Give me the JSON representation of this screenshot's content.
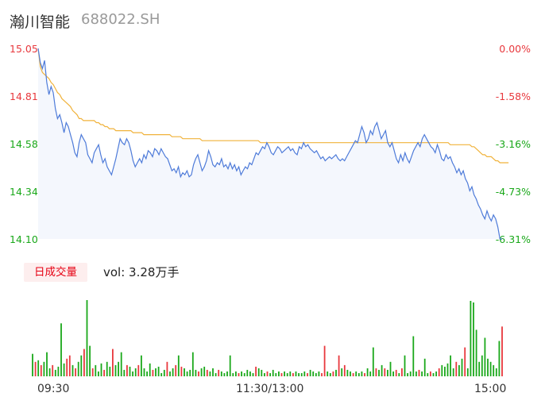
{
  "header": {
    "name": "瀚川智能",
    "code": "688022.SH"
  },
  "colors": {
    "price": "#4e7bd9",
    "avg": "#f0b23a",
    "up": "#e8383d",
    "down": "#1aa81a",
    "area": "#f4f7fd"
  },
  "controls": {
    "period_label": "日成交量",
    "volume_text": "vol: 3.28万手"
  },
  "chart_data": {
    "type": "line",
    "title": "",
    "xlabel": "",
    "ylabel": "",
    "ylim": [
      14.1,
      15.05
    ],
    "y_ticks_left": [
      "15.05",
      "14.81",
      "14.58",
      "14.34",
      "14.10"
    ],
    "y_ticks_right": [
      "0.00%",
      "-1.58%",
      "-3.16%",
      "-4.73%",
      "-6.31%"
    ],
    "x_ticks": [
      "09:30",
      "11:30/13:00",
      "15:00"
    ],
    "grid": false,
    "series": [
      {
        "values": [
          15.05,
          14.98,
          14.95,
          14.99,
          14.88,
          14.82,
          14.86,
          14.83,
          14.75,
          14.7,
          14.72,
          14.68,
          14.63,
          14.68,
          14.66,
          14.62,
          14.58,
          14.53,
          14.51,
          14.58,
          14.62,
          14.6,
          14.58,
          14.52,
          14.5,
          14.48,
          14.53,
          14.55,
          14.57,
          14.52,
          14.48,
          14.5,
          14.46,
          14.44,
          14.42,
          14.46,
          14.5,
          14.55,
          14.6,
          14.58,
          14.57,
          14.6,
          14.58,
          14.54,
          14.49,
          14.46,
          14.48,
          14.5,
          14.48,
          14.52,
          14.5,
          14.54,
          14.53,
          14.51,
          14.55,
          14.54,
          14.52,
          14.55,
          14.53,
          14.51,
          14.5,
          14.47,
          14.44,
          14.45,
          14.43,
          14.46,
          14.41,
          14.43,
          14.42,
          14.44,
          14.41,
          14.42,
          14.47,
          14.5,
          14.52,
          14.48,
          14.44,
          14.46,
          14.49,
          14.54,
          14.51,
          14.47,
          14.46,
          14.48,
          14.47,
          14.5,
          14.46,
          14.47,
          14.45,
          14.48,
          14.45,
          14.47,
          14.44,
          14.46,
          14.42,
          14.44,
          14.46,
          14.45,
          14.48,
          14.47,
          14.5,
          14.53,
          14.52,
          14.54,
          14.56,
          14.55,
          14.58,
          14.56,
          14.53,
          14.52,
          14.54,
          14.56,
          14.55,
          14.53,
          14.54,
          14.55,
          14.56,
          14.54,
          14.55,
          14.53,
          14.52,
          14.56,
          14.55,
          14.58,
          14.56,
          14.57,
          14.55,
          14.54,
          14.53,
          14.54,
          14.52,
          14.5,
          14.51,
          14.49,
          14.5,
          14.51,
          14.5,
          14.51,
          14.52,
          14.5,
          14.49,
          14.5,
          14.49,
          14.51,
          14.53,
          14.55,
          14.57,
          14.59,
          14.58,
          14.62,
          14.66,
          14.63,
          14.58,
          14.6,
          14.64,
          14.62,
          14.66,
          14.68,
          14.64,
          14.6,
          14.62,
          14.64,
          14.58,
          14.56,
          14.58,
          14.54,
          14.5,
          14.48,
          14.52,
          14.49,
          14.53,
          14.5,
          14.48,
          14.51,
          14.54,
          14.56,
          14.58,
          14.56,
          14.6,
          14.62,
          14.6,
          14.58,
          14.56,
          14.55,
          14.53,
          14.57,
          14.54,
          14.5,
          14.49,
          14.52,
          14.5,
          14.51,
          14.48,
          14.46,
          14.43,
          14.45,
          14.42,
          14.44,
          14.4,
          14.38,
          14.34,
          14.36,
          14.32,
          14.3,
          14.27,
          14.25,
          14.22,
          14.2,
          14.24,
          14.21,
          14.19,
          14.22,
          14.2,
          14.16,
          14.1,
          14.1
        ]
      },
      {
        "values": [
          15.05,
          14.96,
          14.93,
          14.92,
          14.91,
          14.9,
          14.88,
          14.87,
          14.85,
          14.83,
          14.82,
          14.8,
          14.79,
          14.78,
          14.77,
          14.76,
          14.74,
          14.73,
          14.72,
          14.7,
          14.7,
          14.69,
          14.69,
          14.69,
          14.69,
          14.69,
          14.69,
          14.68,
          14.68,
          14.67,
          14.67,
          14.66,
          14.66,
          14.65,
          14.65,
          14.65,
          14.64,
          14.64,
          14.64,
          14.64,
          14.64,
          14.64,
          14.64,
          14.64,
          14.63,
          14.63,
          14.63,
          14.63,
          14.63,
          14.62,
          14.62,
          14.62,
          14.62,
          14.62,
          14.62,
          14.62,
          14.62,
          14.62,
          14.62,
          14.62,
          14.62,
          14.62,
          14.61,
          14.61,
          14.61,
          14.61,
          14.61,
          14.6,
          14.6,
          14.6,
          14.6,
          14.6,
          14.6,
          14.6,
          14.6,
          14.6,
          14.59,
          14.59,
          14.59,
          14.59,
          14.59,
          14.59,
          14.59,
          14.59,
          14.59,
          14.59,
          14.59,
          14.59,
          14.59,
          14.59,
          14.59,
          14.59,
          14.59,
          14.59,
          14.59,
          14.59,
          14.59,
          14.59,
          14.59,
          14.59,
          14.59,
          14.59,
          14.59,
          14.58,
          14.58,
          14.58,
          14.58,
          14.58,
          14.58,
          14.58,
          14.58,
          14.58,
          14.58,
          14.58,
          14.58,
          14.58,
          14.58,
          14.58,
          14.58,
          14.58,
          14.58,
          14.58,
          14.58,
          14.58,
          14.58,
          14.58,
          14.58,
          14.58,
          14.58,
          14.58,
          14.58,
          14.58,
          14.58,
          14.58,
          14.58,
          14.58,
          14.58,
          14.58,
          14.58,
          14.58,
          14.58,
          14.58,
          14.58,
          14.58,
          14.58,
          14.58,
          14.58,
          14.58,
          14.58,
          14.58,
          14.58,
          14.58,
          14.58,
          14.58,
          14.58,
          14.58,
          14.58,
          14.58,
          14.58,
          14.58,
          14.58,
          14.58,
          14.58,
          14.58,
          14.58,
          14.58,
          14.58,
          14.58,
          14.58,
          14.58,
          14.58,
          14.58,
          14.58,
          14.58,
          14.58,
          14.58,
          14.58,
          14.58,
          14.58,
          14.58,
          14.58,
          14.58,
          14.58,
          14.58,
          14.58,
          14.58,
          14.58,
          14.58,
          14.58,
          14.58,
          14.58,
          14.57,
          14.57,
          14.57,
          14.57,
          14.57,
          14.57,
          14.57,
          14.57,
          14.57,
          14.57,
          14.56,
          14.56,
          14.55,
          14.54,
          14.53,
          14.52,
          14.52,
          14.51,
          14.51,
          14.51,
          14.5,
          14.49,
          14.49,
          14.48,
          14.48,
          14.48,
          14.48,
          14.48
        ]
      }
    ],
    "volume": [
      {
        "v": 28,
        "c": "down"
      },
      {
        "v": 18,
        "c": "up"
      },
      {
        "v": 20,
        "c": "down"
      },
      {
        "v": 14,
        "c": "up"
      },
      {
        "v": 18,
        "c": "down"
      },
      {
        "v": 30,
        "c": "down"
      },
      {
        "v": 10,
        "c": "down"
      },
      {
        "v": 14,
        "c": "up"
      },
      {
        "v": 8,
        "c": "down"
      },
      {
        "v": 12,
        "c": "down"
      },
      {
        "v": 66,
        "c": "down"
      },
      {
        "v": 16,
        "c": "down"
      },
      {
        "v": 22,
        "c": "up"
      },
      {
        "v": 26,
        "c": "up"
      },
      {
        "v": 14,
        "c": "down"
      },
      {
        "v": 10,
        "c": "up"
      },
      {
        "v": 18,
        "c": "down"
      },
      {
        "v": 26,
        "c": "down"
      },
      {
        "v": 34,
        "c": "up"
      },
      {
        "v": 95,
        "c": "down"
      },
      {
        "v": 38,
        "c": "down"
      },
      {
        "v": 10,
        "c": "up"
      },
      {
        "v": 14,
        "c": "down"
      },
      {
        "v": 6,
        "c": "down"
      },
      {
        "v": 16,
        "c": "down"
      },
      {
        "v": 8,
        "c": "up"
      },
      {
        "v": 18,
        "c": "down"
      },
      {
        "v": 12,
        "c": "down"
      },
      {
        "v": 34,
        "c": "up"
      },
      {
        "v": 14,
        "c": "down"
      },
      {
        "v": 18,
        "c": "down"
      },
      {
        "v": 30,
        "c": "down"
      },
      {
        "v": 8,
        "c": "down"
      },
      {
        "v": 14,
        "c": "up"
      },
      {
        "v": 12,
        "c": "down"
      },
      {
        "v": 6,
        "c": "down"
      },
      {
        "v": 10,
        "c": "down"
      },
      {
        "v": 14,
        "c": "up"
      },
      {
        "v": 26,
        "c": "down"
      },
      {
        "v": 10,
        "c": "down"
      },
      {
        "v": 6,
        "c": "down"
      },
      {
        "v": 16,
        "c": "down"
      },
      {
        "v": 8,
        "c": "up"
      },
      {
        "v": 10,
        "c": "down"
      },
      {
        "v": 12,
        "c": "down"
      },
      {
        "v": 4,
        "c": "down"
      },
      {
        "v": 8,
        "c": "down"
      },
      {
        "v": 18,
        "c": "up"
      },
      {
        "v": 6,
        "c": "down"
      },
      {
        "v": 10,
        "c": "down"
      },
      {
        "v": 14,
        "c": "up"
      },
      {
        "v": 26,
        "c": "down"
      },
      {
        "v": 12,
        "c": "up"
      },
      {
        "v": 10,
        "c": "down"
      },
      {
        "v": 6,
        "c": "down"
      },
      {
        "v": 8,
        "c": "down"
      },
      {
        "v": 30,
        "c": "down"
      },
      {
        "v": 8,
        "c": "down"
      },
      {
        "v": 6,
        "c": "up"
      },
      {
        "v": 10,
        "c": "down"
      },
      {
        "v": 12,
        "c": "down"
      },
      {
        "v": 8,
        "c": "up"
      },
      {
        "v": 6,
        "c": "down"
      },
      {
        "v": 10,
        "c": "down"
      },
      {
        "v": 4,
        "c": "down"
      },
      {
        "v": 8,
        "c": "up"
      },
      {
        "v": 6,
        "c": "down"
      },
      {
        "v": 4,
        "c": "down"
      },
      {
        "v": 6,
        "c": "down"
      },
      {
        "v": 26,
        "c": "down"
      },
      {
        "v": 4,
        "c": "down"
      },
      {
        "v": 6,
        "c": "down"
      },
      {
        "v": 4,
        "c": "up"
      },
      {
        "v": 6,
        "c": "down"
      },
      {
        "v": 4,
        "c": "down"
      },
      {
        "v": 8,
        "c": "down"
      },
      {
        "v": 6,
        "c": "down"
      },
      {
        "v": 4,
        "c": "down"
      },
      {
        "v": 12,
        "c": "up"
      },
      {
        "v": 10,
        "c": "down"
      },
      {
        "v": 8,
        "c": "down"
      },
      {
        "v": 4,
        "c": "down"
      },
      {
        "v": 6,
        "c": "up"
      },
      {
        "v": 4,
        "c": "down"
      },
      {
        "v": 8,
        "c": "down"
      },
      {
        "v": 4,
        "c": "down"
      },
      {
        "v": 6,
        "c": "down"
      },
      {
        "v": 4,
        "c": "up"
      },
      {
        "v": 6,
        "c": "down"
      },
      {
        "v": 4,
        "c": "down"
      },
      {
        "v": 6,
        "c": "down"
      },
      {
        "v": 4,
        "c": "up"
      },
      {
        "v": 6,
        "c": "down"
      },
      {
        "v": 4,
        "c": "down"
      },
      {
        "v": 4,
        "c": "down"
      },
      {
        "v": 6,
        "c": "down"
      },
      {
        "v": 4,
        "c": "up"
      },
      {
        "v": 8,
        "c": "down"
      },
      {
        "v": 6,
        "c": "down"
      },
      {
        "v": 4,
        "c": "down"
      },
      {
        "v": 6,
        "c": "down"
      },
      {
        "v": 4,
        "c": "up"
      },
      {
        "v": 38,
        "c": "up"
      },
      {
        "v": 6,
        "c": "down"
      },
      {
        "v": 4,
        "c": "down"
      },
      {
        "v": 6,
        "c": "up"
      },
      {
        "v": 8,
        "c": "down"
      },
      {
        "v": 26,
        "c": "up"
      },
      {
        "v": 10,
        "c": "down"
      },
      {
        "v": 14,
        "c": "up"
      },
      {
        "v": 8,
        "c": "down"
      },
      {
        "v": 6,
        "c": "down"
      },
      {
        "v": 4,
        "c": "up"
      },
      {
        "v": 6,
        "c": "down"
      },
      {
        "v": 4,
        "c": "down"
      },
      {
        "v": 6,
        "c": "down"
      },
      {
        "v": 4,
        "c": "up"
      },
      {
        "v": 10,
        "c": "down"
      },
      {
        "v": 6,
        "c": "down"
      },
      {
        "v": 36,
        "c": "down"
      },
      {
        "v": 10,
        "c": "up"
      },
      {
        "v": 8,
        "c": "down"
      },
      {
        "v": 14,
        "c": "down"
      },
      {
        "v": 10,
        "c": "up"
      },
      {
        "v": 8,
        "c": "down"
      },
      {
        "v": 18,
        "c": "down"
      },
      {
        "v": 6,
        "c": "down"
      },
      {
        "v": 8,
        "c": "up"
      },
      {
        "v": 4,
        "c": "down"
      },
      {
        "v": 10,
        "c": "up"
      },
      {
        "v": 26,
        "c": "down"
      },
      {
        "v": 4,
        "c": "down"
      },
      {
        "v": 6,
        "c": "down"
      },
      {
        "v": 50,
        "c": "down"
      },
      {
        "v": 6,
        "c": "down"
      },
      {
        "v": 8,
        "c": "up"
      },
      {
        "v": 6,
        "c": "down"
      },
      {
        "v": 22,
        "c": "down"
      },
      {
        "v": 4,
        "c": "down"
      },
      {
        "v": 6,
        "c": "up"
      },
      {
        "v": 4,
        "c": "down"
      },
      {
        "v": 6,
        "c": "down"
      },
      {
        "v": 10,
        "c": "up"
      },
      {
        "v": 14,
        "c": "down"
      },
      {
        "v": 12,
        "c": "down"
      },
      {
        "v": 16,
        "c": "down"
      },
      {
        "v": 26,
        "c": "down"
      },
      {
        "v": 10,
        "c": "down"
      },
      {
        "v": 18,
        "c": "up"
      },
      {
        "v": 14,
        "c": "down"
      },
      {
        "v": 22,
        "c": "down"
      },
      {
        "v": 36,
        "c": "up"
      },
      {
        "v": 10,
        "c": "down"
      },
      {
        "v": 94,
        "c": "down"
      },
      {
        "v": 92,
        "c": "down"
      },
      {
        "v": 58,
        "c": "down"
      },
      {
        "v": 18,
        "c": "down"
      },
      {
        "v": 26,
        "c": "down"
      },
      {
        "v": 48,
        "c": "down"
      },
      {
        "v": 22,
        "c": "down"
      },
      {
        "v": 18,
        "c": "down"
      },
      {
        "v": 14,
        "c": "down"
      },
      {
        "v": 10,
        "c": "down"
      },
      {
        "v": 44,
        "c": "down"
      },
      {
        "v": 62,
        "c": "up"
      }
    ]
  }
}
